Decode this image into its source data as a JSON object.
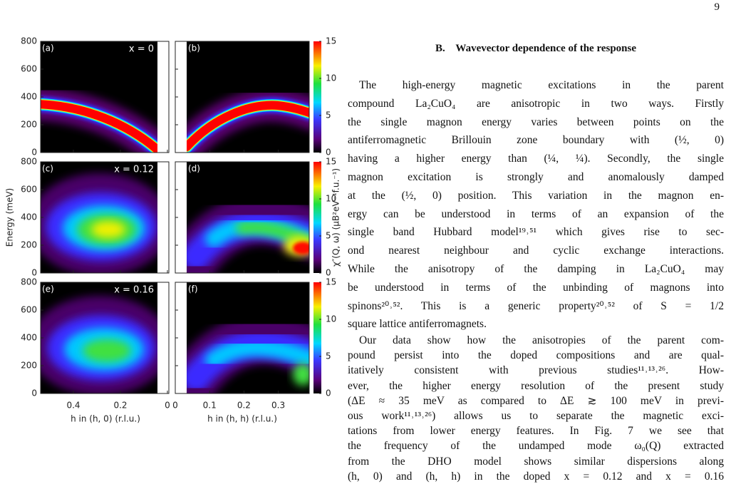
{
  "page_number": "9",
  "figure": {
    "panels": [
      {
        "label": "(a)",
        "annotation": "x = 0"
      },
      {
        "label": "(b)"
      },
      {
        "label": "(c)",
        "annotation": "x = 0.12"
      },
      {
        "label": "(d)"
      },
      {
        "label": "(e)",
        "annotation": "x = 0.16"
      },
      {
        "label": "(f)"
      }
    ],
    "y_axis": {
      "title": "Energy (meV)",
      "ticks": [
        0,
        200,
        400,
        600,
        800
      ]
    },
    "x_axis_left": {
      "title": "h in (h, 0) (r.l.u.)",
      "ticks": [
        0.4,
        0.2,
        0
      ]
    },
    "x_axis_right": {
      "title": "h in (h, h) (r.l.u.)",
      "ticks": [
        0,
        0.1,
        0.2,
        0.3
      ]
    },
    "colorbar": {
      "title": "χ″(Q, ω) (μB²eV⁻¹f.u.⁻¹)",
      "ticks": [
        0,
        5,
        10,
        15
      ]
    }
  },
  "section": {
    "heading": "B.    Wavevector dependence of the response",
    "paragraphs": [
      [
        "The high-energy magnetic excitations in the parent",
        "compound La₂CuO₄ are anisotropic in two ways. Firstly",
        "the single magnon energy varies between points on the",
        "antiferromagnetic Brillouin zone boundary with (½, 0)",
        "having a higher energy than (¼, ¼). Secondly, the single",
        "magnon excitation is strongly and anomalously damped",
        "at the (½, 0) position. This variation in the magnon en-",
        "ergy can be understood in terms of an expansion of the",
        "single band Hubbard model¹⁹˒⁵¹ which gives rise to sec-",
        "ond nearest neighbour and cyclic exchange interactions.",
        "While the anisotropy of the damping in La₂CuO₄ may",
        "be understood in terms of the unbinding of magnons into",
        "spinons²⁰˒⁵². This is a generic property²⁰˒⁵² of S = 1/2",
        "square lattice antiferromagnets."
      ],
      [
        "Our data show how the anisotropies of the parent com-",
        "pound persist into the doped compositions and are qual-",
        "itatively consistent with previous studies¹¹˒¹³˒²⁶. How-",
        "ever, the higher energy resolution of the present study",
        "(ΔE ≈ 35 meV as compared to ΔE ≳ 100 meV in previ-",
        "ous work¹¹˒¹³˒²⁶) allows us to separate the magnetic exci-",
        "tations from lower energy features. In Fig. 7 we see that",
        "the frequency of the undamped mode ω₀(Q) extracted",
        "from the DHO model shows similar dispersions along",
        "(h, 0) and (h, h) in the doped x = 0.12 and x = 0.16"
      ]
    ]
  }
}
